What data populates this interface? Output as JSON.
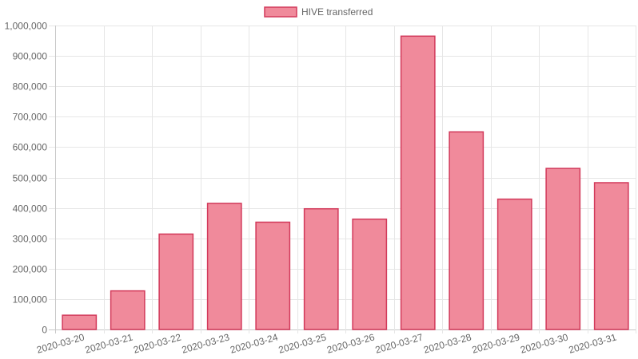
{
  "chart_data": {
    "type": "bar",
    "legend_position": "top-center",
    "grid": true,
    "series": [
      {
        "name": "HIVE transferred",
        "fill_color": "#f08a9b",
        "border_color": "#d2395a",
        "values": [
          47000,
          127000,
          314000,
          415000,
          353000,
          397000,
          363000,
          965000,
          650000,
          429000,
          530000,
          483000
        ]
      }
    ],
    "categories": [
      "2020-03-20",
      "2020-03-21",
      "2020-03-22",
      "2020-03-23",
      "2020-03-24",
      "2020-03-25",
      "2020-03-26",
      "2020-03-27",
      "2020-03-28",
      "2020-03-29",
      "2020-03-30",
      "2020-03-31"
    ],
    "ylim": [
      0,
      1000000
    ],
    "yticks": [
      0,
      100000,
      200000,
      300000,
      400000,
      500000,
      600000,
      700000,
      800000,
      900000,
      1000000
    ],
    "ytick_labels": [
      "0",
      "100,000",
      "200,000",
      "300,000",
      "400,000",
      "500,000",
      "600,000",
      "700,000",
      "800,000",
      "900,000",
      "1,000,000"
    ]
  }
}
